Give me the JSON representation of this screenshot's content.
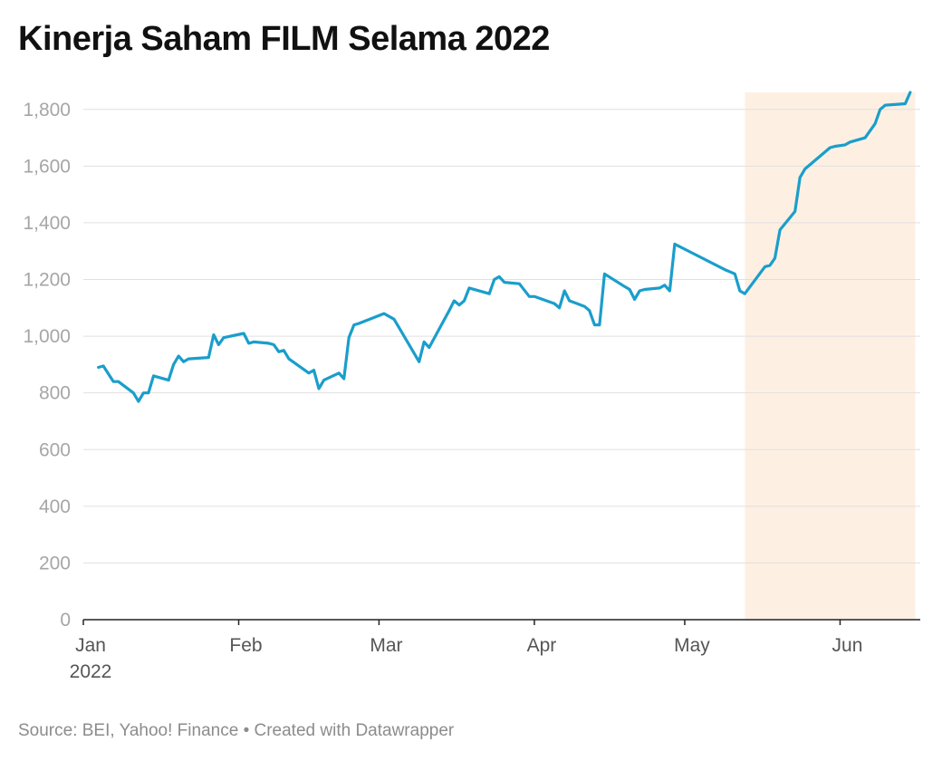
{
  "title": "Kinerja Saham FILM Selama 2022",
  "footer": {
    "source": "Source: BEI, Yahoo! Finance",
    "separator": "•",
    "credit": "Created with Datawrapper"
  },
  "colors": {
    "line": "#1a9ecb",
    "highlight": "#fdf0e3",
    "grid": "#e0e0e0",
    "axis": "#222222"
  },
  "chart_data": {
    "type": "line",
    "title": "Kinerja Saham FILM Selama 2022",
    "xlabel": "",
    "ylabel": "",
    "xlim": [
      "2022-01-01",
      "2022-06-17"
    ],
    "ylim": [
      0,
      1860
    ],
    "y_ticks": [
      {
        "value": 0,
        "label": "0"
      },
      {
        "value": 200,
        "label": "200"
      },
      {
        "value": 400,
        "label": "400"
      },
      {
        "value": 600,
        "label": "600"
      },
      {
        "value": 800,
        "label": "800"
      },
      {
        "value": 1000,
        "label": "1,000"
      },
      {
        "value": 1200,
        "label": "1,200"
      },
      {
        "value": 1400,
        "label": "1,400"
      },
      {
        "value": 1600,
        "label": "1,600"
      },
      {
        "value": 1800,
        "label": "1,800"
      }
    ],
    "x_ticks": [
      {
        "date": "2022-01-01",
        "label": "Jan",
        "sublabel": "2022"
      },
      {
        "date": "2022-02-01",
        "label": "Feb"
      },
      {
        "date": "2022-03-01",
        "label": "Mar"
      },
      {
        "date": "2022-04-01",
        "label": "Apr"
      },
      {
        "date": "2022-05-01",
        "label": "May"
      },
      {
        "date": "2022-06-01",
        "label": "Jun"
      }
    ],
    "grid": true,
    "highlight_range": [
      "2022-05-13",
      "2022-06-16"
    ],
    "series": [
      {
        "values": [
          [
            "2022-01-04",
            890
          ],
          [
            "2022-01-05",
            895
          ],
          [
            "2022-01-07",
            840
          ],
          [
            "2022-01-08",
            840
          ],
          [
            "2022-01-11",
            800
          ],
          [
            "2022-01-12",
            770
          ],
          [
            "2022-01-13",
            800
          ],
          [
            "2022-01-14",
            800
          ],
          [
            "2022-01-15",
            860
          ],
          [
            "2022-01-18",
            845
          ],
          [
            "2022-01-19",
            900
          ],
          [
            "2022-01-20",
            930
          ],
          [
            "2022-01-21",
            910
          ],
          [
            "2022-01-22",
            920
          ],
          [
            "2022-01-26",
            925
          ],
          [
            "2022-01-27",
            1005
          ],
          [
            "2022-01-28",
            970
          ],
          [
            "2022-01-29",
            995
          ],
          [
            "2022-02-02",
            1010
          ],
          [
            "2022-02-03",
            975
          ],
          [
            "2022-02-04",
            980
          ],
          [
            "2022-02-07",
            975
          ],
          [
            "2022-02-08",
            970
          ],
          [
            "2022-02-09",
            945
          ],
          [
            "2022-02-10",
            950
          ],
          [
            "2022-02-11",
            920
          ],
          [
            "2022-02-15",
            870
          ],
          [
            "2022-02-16",
            880
          ],
          [
            "2022-02-17",
            815
          ],
          [
            "2022-02-18",
            845
          ],
          [
            "2022-02-21",
            870
          ],
          [
            "2022-02-22",
            850
          ],
          [
            "2022-02-23",
            995
          ],
          [
            "2022-02-24",
            1040
          ],
          [
            "2022-02-25",
            1045
          ],
          [
            "2022-03-02",
            1080
          ],
          [
            "2022-03-04",
            1060
          ],
          [
            "2022-03-05",
            1030
          ],
          [
            "2022-03-09",
            910
          ],
          [
            "2022-03-10",
            980
          ],
          [
            "2022-03-11",
            960
          ],
          [
            "2022-03-15",
            1090
          ],
          [
            "2022-03-16",
            1125
          ],
          [
            "2022-03-17",
            1110
          ],
          [
            "2022-03-18",
            1125
          ],
          [
            "2022-03-19",
            1170
          ],
          [
            "2022-03-23",
            1150
          ],
          [
            "2022-03-24",
            1200
          ],
          [
            "2022-03-25",
            1210
          ],
          [
            "2022-03-26",
            1190
          ],
          [
            "2022-03-29",
            1185
          ],
          [
            "2022-03-31",
            1140
          ],
          [
            "2022-04-01",
            1140
          ],
          [
            "2022-04-05",
            1115
          ],
          [
            "2022-04-06",
            1100
          ],
          [
            "2022-04-07",
            1160
          ],
          [
            "2022-04-08",
            1125
          ],
          [
            "2022-04-11",
            1105
          ],
          [
            "2022-04-12",
            1090
          ],
          [
            "2022-04-13",
            1040
          ],
          [
            "2022-04-14",
            1040
          ],
          [
            "2022-04-15",
            1220
          ],
          [
            "2022-04-19",
            1175
          ],
          [
            "2022-04-20",
            1165
          ],
          [
            "2022-04-21",
            1130
          ],
          [
            "2022-04-22",
            1160
          ],
          [
            "2022-04-23",
            1165
          ],
          [
            "2022-04-26",
            1170
          ],
          [
            "2022-04-27",
            1180
          ],
          [
            "2022-04-28",
            1160
          ],
          [
            "2022-04-29",
            1325
          ],
          [
            "2022-05-09",
            1235
          ],
          [
            "2022-05-11",
            1220
          ],
          [
            "2022-05-12",
            1160
          ],
          [
            "2022-05-13",
            1150
          ],
          [
            "2022-05-17",
            1245
          ],
          [
            "2022-05-18",
            1250
          ],
          [
            "2022-05-19",
            1275
          ],
          [
            "2022-05-20",
            1375
          ],
          [
            "2022-05-23",
            1440
          ],
          [
            "2022-05-24",
            1560
          ],
          [
            "2022-05-25",
            1590
          ],
          [
            "2022-05-30",
            1665
          ],
          [
            "2022-05-31",
            1670
          ],
          [
            "2022-06-02",
            1675
          ],
          [
            "2022-06-03",
            1685
          ],
          [
            "2022-06-06",
            1700
          ],
          [
            "2022-06-08",
            1750
          ],
          [
            "2022-06-09",
            1800
          ],
          [
            "2022-06-10",
            1815
          ],
          [
            "2022-06-14",
            1820
          ],
          [
            "2022-06-15",
            1860
          ]
        ]
      }
    ]
  }
}
